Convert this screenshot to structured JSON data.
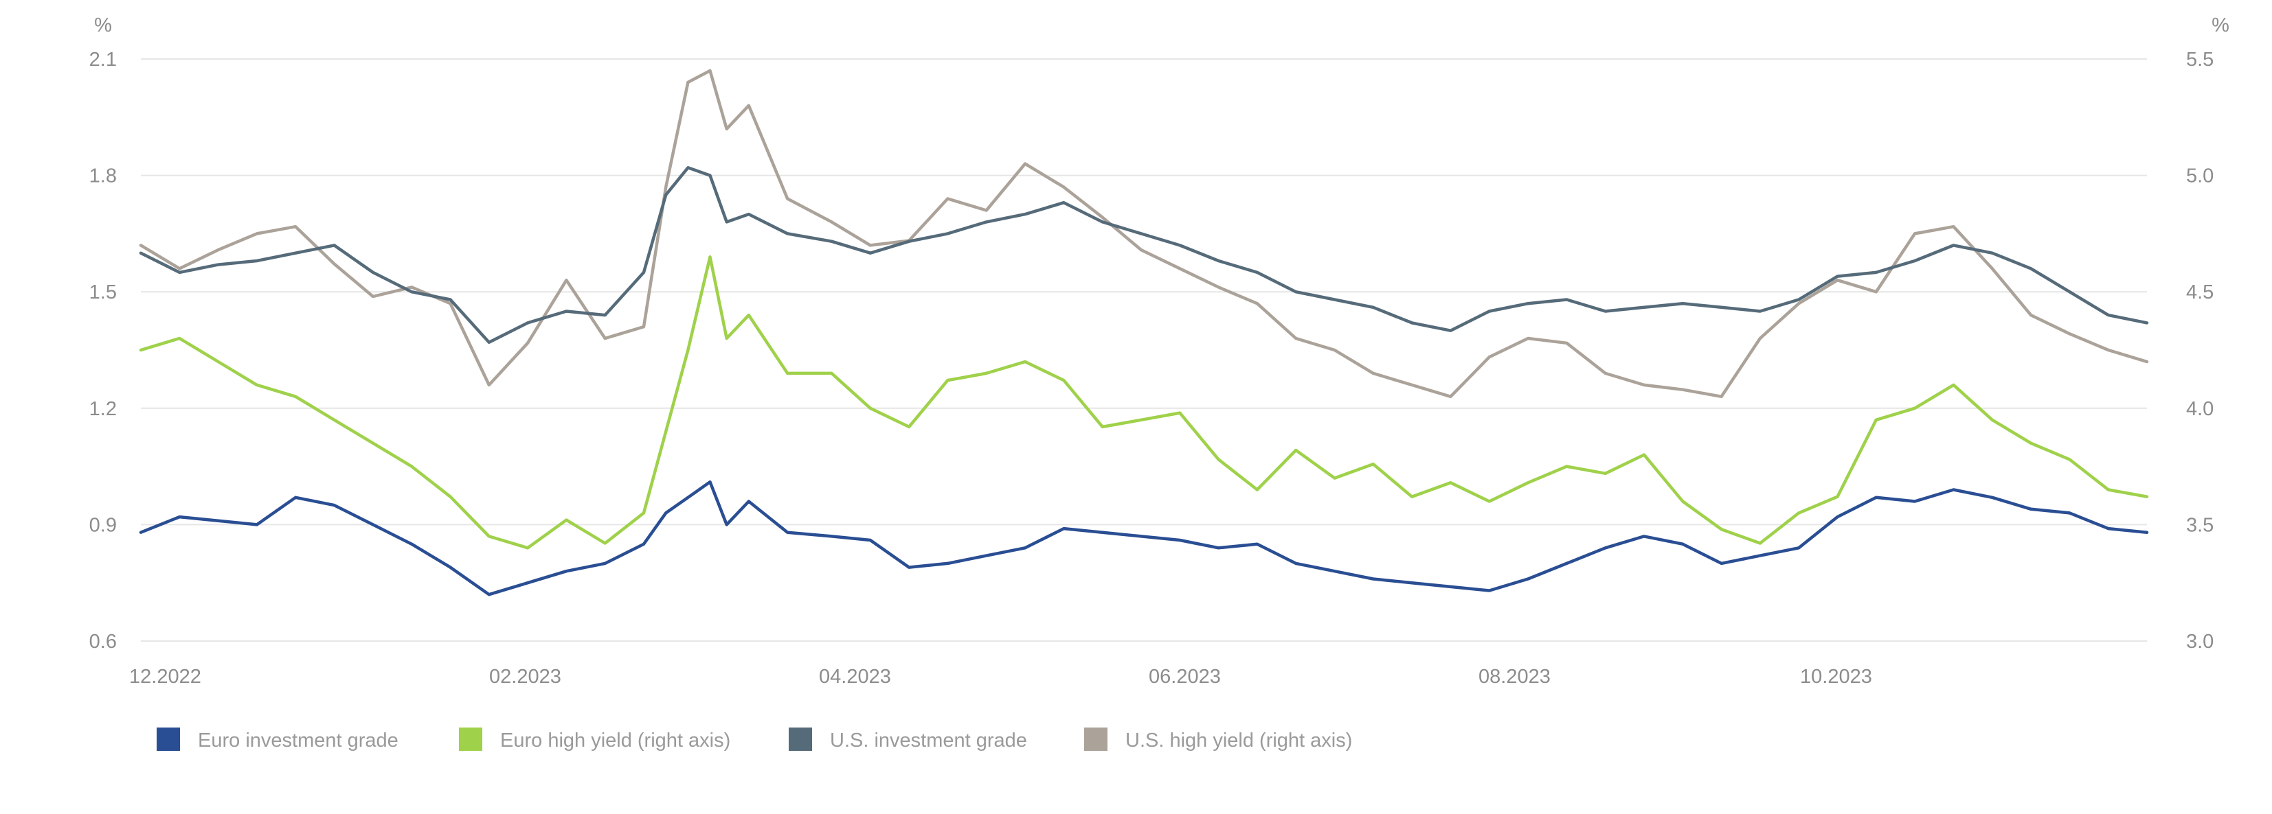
{
  "chart_data": {
    "type": "line",
    "left_axis": {
      "unit": "%",
      "ylim": [
        0.6,
        2.1
      ],
      "ticks": [
        "0.6",
        "0.9",
        "1.2",
        "1.5",
        "1.8",
        "2.1"
      ]
    },
    "right_axis": {
      "unit": "%",
      "ylim": [
        3.0,
        5.5
      ],
      "ticks": [
        "3.0",
        "3.5",
        "4.0",
        "4.5",
        "5.0",
        "5.5"
      ]
    },
    "x_ticks": [
      "12.2022",
      "02.2023",
      "04.2023",
      "06.2023",
      "08.2023",
      "10.2023"
    ],
    "grid": true,
    "legend_placement": "bottom-left",
    "series": [
      {
        "name": "Euro investment grade",
        "axis": "left",
        "color": "#2a4e93",
        "x": [
          "2022-12-01",
          "2022-12-08",
          "2022-12-15",
          "2022-12-22",
          "2022-12-29",
          "2023-01-05",
          "2023-01-12",
          "2023-01-19",
          "2023-01-26",
          "2023-02-02",
          "2023-02-09",
          "2023-02-16",
          "2023-02-23",
          "2023-03-02",
          "2023-03-06",
          "2023-03-10",
          "2023-03-14",
          "2023-03-17",
          "2023-03-21",
          "2023-03-28",
          "2023-04-05",
          "2023-04-12",
          "2023-04-19",
          "2023-04-26",
          "2023-05-03",
          "2023-05-10",
          "2023-05-17",
          "2023-05-24",
          "2023-05-31",
          "2023-06-07",
          "2023-06-14",
          "2023-06-21",
          "2023-06-28",
          "2023-07-05",
          "2023-07-12",
          "2023-07-19",
          "2023-07-26",
          "2023-08-02",
          "2023-08-09",
          "2023-08-16",
          "2023-08-23",
          "2023-08-30",
          "2023-09-06",
          "2023-09-13",
          "2023-09-20",
          "2023-09-27",
          "2023-10-04",
          "2023-10-11",
          "2023-10-18",
          "2023-10-25",
          "2023-11-01",
          "2023-11-08",
          "2023-11-15",
          "2023-11-22",
          "2023-11-29"
        ],
        "values": [
          0.88,
          0.92,
          0.91,
          0.9,
          0.97,
          0.95,
          0.9,
          0.85,
          0.79,
          0.72,
          0.75,
          0.78,
          0.8,
          0.85,
          0.93,
          0.97,
          1.01,
          0.9,
          0.96,
          0.88,
          0.87,
          0.86,
          0.79,
          0.8,
          0.82,
          0.84,
          0.89,
          0.88,
          0.87,
          0.86,
          0.84,
          0.85,
          0.8,
          0.78,
          0.76,
          0.75,
          0.74,
          0.73,
          0.76,
          0.8,
          0.84,
          0.87,
          0.85,
          0.8,
          0.82,
          0.84,
          0.92,
          0.97,
          0.96,
          0.99,
          0.97,
          0.94,
          0.93,
          0.89,
          0.88
        ]
      },
      {
        "name": "Euro high yield (right axis)",
        "axis": "right",
        "color": "#9fd14a",
        "x": [
          "2022-12-01",
          "2022-12-08",
          "2022-12-15",
          "2022-12-22",
          "2022-12-29",
          "2023-01-05",
          "2023-01-12",
          "2023-01-19",
          "2023-01-26",
          "2023-02-02",
          "2023-02-09",
          "2023-02-16",
          "2023-02-23",
          "2023-03-02",
          "2023-03-06",
          "2023-03-10",
          "2023-03-14",
          "2023-03-17",
          "2023-03-21",
          "2023-03-28",
          "2023-04-05",
          "2023-04-12",
          "2023-04-19",
          "2023-04-26",
          "2023-05-03",
          "2023-05-10",
          "2023-05-17",
          "2023-05-24",
          "2023-05-31",
          "2023-06-07",
          "2023-06-14",
          "2023-06-21",
          "2023-06-28",
          "2023-07-05",
          "2023-07-12",
          "2023-07-19",
          "2023-07-26",
          "2023-08-02",
          "2023-08-09",
          "2023-08-16",
          "2023-08-23",
          "2023-08-30",
          "2023-09-06",
          "2023-09-13",
          "2023-09-20",
          "2023-09-27",
          "2023-10-04",
          "2023-10-11",
          "2023-10-18",
          "2023-10-25",
          "2023-11-01",
          "2023-11-08",
          "2023-11-15",
          "2023-11-22",
          "2023-11-29"
        ],
        "values": [
          4.25,
          4.3,
          4.2,
          4.1,
          4.05,
          3.95,
          3.85,
          3.75,
          3.62,
          3.45,
          3.4,
          3.52,
          3.42,
          3.55,
          3.9,
          4.25,
          4.65,
          4.3,
          4.4,
          4.15,
          4.15,
          4.0,
          3.92,
          4.12,
          4.15,
          4.2,
          4.12,
          3.92,
          3.95,
          3.98,
          3.78,
          3.65,
          3.82,
          3.7,
          3.76,
          3.62,
          3.68,
          3.6,
          3.68,
          3.75,
          3.72,
          3.8,
          3.6,
          3.48,
          3.42,
          3.55,
          3.62,
          3.95,
          4.0,
          4.1,
          3.95,
          3.85,
          3.78,
          3.65,
          3.62
        ]
      },
      {
        "name": "U.S. investment grade",
        "axis": "left",
        "color": "#566b79",
        "x": [
          "2022-12-01",
          "2022-12-08",
          "2022-12-15",
          "2022-12-22",
          "2022-12-29",
          "2023-01-05",
          "2023-01-12",
          "2023-01-19",
          "2023-01-26",
          "2023-02-02",
          "2023-02-09",
          "2023-02-16",
          "2023-02-23",
          "2023-03-02",
          "2023-03-06",
          "2023-03-10",
          "2023-03-14",
          "2023-03-17",
          "2023-03-21",
          "2023-03-28",
          "2023-04-05",
          "2023-04-12",
          "2023-04-19",
          "2023-04-26",
          "2023-05-03",
          "2023-05-10",
          "2023-05-17",
          "2023-05-24",
          "2023-05-31",
          "2023-06-07",
          "2023-06-14",
          "2023-06-21",
          "2023-06-28",
          "2023-07-05",
          "2023-07-12",
          "2023-07-19",
          "2023-07-26",
          "2023-08-02",
          "2023-08-09",
          "2023-08-16",
          "2023-08-23",
          "2023-08-30",
          "2023-09-06",
          "2023-09-13",
          "2023-09-20",
          "2023-09-27",
          "2023-10-04",
          "2023-10-11",
          "2023-10-18",
          "2023-10-25",
          "2023-11-01",
          "2023-11-08",
          "2023-11-15",
          "2023-11-22",
          "2023-11-29"
        ],
        "values": [
          1.6,
          1.55,
          1.57,
          1.58,
          1.6,
          1.62,
          1.55,
          1.5,
          1.48,
          1.37,
          1.42,
          1.45,
          1.44,
          1.55,
          1.75,
          1.82,
          1.8,
          1.68,
          1.7,
          1.65,
          1.63,
          1.6,
          1.63,
          1.65,
          1.68,
          1.7,
          1.73,
          1.68,
          1.65,
          1.62,
          1.58,
          1.55,
          1.5,
          1.48,
          1.46,
          1.42,
          1.4,
          1.45,
          1.47,
          1.48,
          1.45,
          1.46,
          1.47,
          1.46,
          1.45,
          1.48,
          1.54,
          1.55,
          1.58,
          1.62,
          1.6,
          1.56,
          1.5,
          1.44,
          1.42
        ]
      },
      {
        "name": "U.S. high yield (right axis)",
        "axis": "right",
        "color": "#aba299",
        "x": [
          "2022-12-01",
          "2022-12-08",
          "2022-12-15",
          "2022-12-22",
          "2022-12-29",
          "2023-01-05",
          "2023-01-12",
          "2023-01-19",
          "2023-01-26",
          "2023-02-02",
          "2023-02-09",
          "2023-02-16",
          "2023-02-23",
          "2023-03-02",
          "2023-03-06",
          "2023-03-10",
          "2023-03-14",
          "2023-03-17",
          "2023-03-21",
          "2023-03-28",
          "2023-04-05",
          "2023-04-12",
          "2023-04-19",
          "2023-04-26",
          "2023-05-03",
          "2023-05-10",
          "2023-05-17",
          "2023-05-24",
          "2023-05-31",
          "2023-06-07",
          "2023-06-14",
          "2023-06-21",
          "2023-06-28",
          "2023-07-05",
          "2023-07-12",
          "2023-07-19",
          "2023-07-26",
          "2023-08-02",
          "2023-08-09",
          "2023-08-16",
          "2023-08-23",
          "2023-08-30",
          "2023-09-06",
          "2023-09-13",
          "2023-09-20",
          "2023-09-27",
          "2023-10-04",
          "2023-10-11",
          "2023-10-18",
          "2023-10-25",
          "2023-11-01",
          "2023-11-08",
          "2023-11-15",
          "2023-11-22",
          "2023-11-29"
        ],
        "values": [
          4.7,
          4.6,
          4.68,
          4.75,
          4.78,
          4.62,
          4.48,
          4.52,
          4.45,
          4.1,
          4.28,
          4.55,
          4.3,
          4.35,
          4.95,
          5.4,
          5.45,
          5.2,
          5.3,
          4.9,
          4.8,
          4.7,
          4.72,
          4.9,
          4.85,
          5.05,
          4.95,
          4.82,
          4.68,
          4.6,
          4.52,
          4.45,
          4.3,
          4.25,
          4.15,
          4.1,
          4.05,
          4.22,
          4.3,
          4.28,
          4.15,
          4.1,
          4.08,
          4.05,
          4.3,
          4.45,
          4.55,
          4.5,
          4.75,
          4.78,
          4.6,
          4.4,
          4.32,
          4.25,
          4.2
        ]
      }
    ]
  }
}
